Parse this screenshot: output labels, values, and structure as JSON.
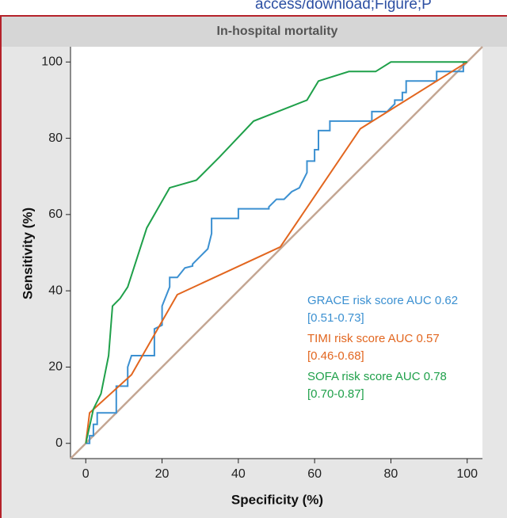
{
  "header": {
    "url_fragment": "access/download;Figure;P"
  },
  "chart_data": {
    "type": "line",
    "title": "In-hospital mortality",
    "x_label": "Specificity (%)",
    "y_label": "Sensitivity (%)",
    "xlim": [
      -4,
      104
    ],
    "ylim": [
      -4,
      104
    ],
    "xticks": [
      0,
      20,
      40,
      60,
      80,
      100
    ],
    "yticks": [
      0,
      20,
      40,
      60,
      80,
      100
    ],
    "reference_line": true,
    "reference_color": "#c4a693",
    "series": [
      {
        "name": "GRACE risk score AUC 0.62",
        "ci": "[0.51-0.73]",
        "color": "#3b90d1",
        "x": [
          0,
          1,
          1,
          2,
          2,
          3,
          3,
          8,
          8,
          11,
          11,
          12,
          18,
          18,
          20,
          20,
          22,
          22,
          24,
          26,
          28,
          28,
          30,
          31,
          32,
          33,
          33,
          40,
          40,
          48,
          48,
          50,
          52,
          54,
          56,
          57,
          58,
          58,
          60,
          60,
          61,
          61,
          64,
          64,
          75,
          75,
          79,
          80,
          81,
          81,
          83,
          83,
          84,
          84,
          92,
          92,
          99,
          99,
          100
        ],
        "values": [
          0,
          0,
          2,
          2,
          5,
          5,
          8,
          8,
          15,
          15,
          20,
          23,
          23,
          30,
          31,
          36,
          41,
          43.5,
          43.5,
          46,
          46.5,
          47,
          49,
          50,
          51,
          55,
          59,
          59,
          61.5,
          61.5,
          62,
          64,
          64,
          66,
          67,
          69,
          71,
          74,
          74,
          77,
          77,
          82,
          82,
          84.5,
          84.5,
          87,
          87,
          88,
          89,
          90,
          90,
          92,
          92,
          95,
          95,
          97.5,
          97.5,
          100,
          100
        ]
      },
      {
        "name": "TIMI risk score AUC 0.57",
        "ci": "[0.46-0.68]",
        "color": "#e2661f",
        "x": [
          0,
          1,
          12,
          24,
          51,
          72,
          100
        ],
        "values": [
          0,
          8,
          18,
          39,
          51.5,
          82.5,
          100
        ]
      },
      {
        "name": "SOFA risk score AUC 0.78",
        "ci": "[0.70-0.87]",
        "color": "#1fa04a",
        "x": [
          0,
          2,
          4,
          6,
          7,
          9,
          11,
          16,
          22,
          29,
          35,
          44,
          58,
          61,
          69,
          76,
          80,
          100
        ],
        "values": [
          0,
          9,
          13,
          23,
          36,
          38,
          41,
          56.5,
          67,
          69,
          75,
          84.5,
          90,
          95,
          97.5,
          97.5,
          100,
          100
        ]
      }
    ]
  }
}
